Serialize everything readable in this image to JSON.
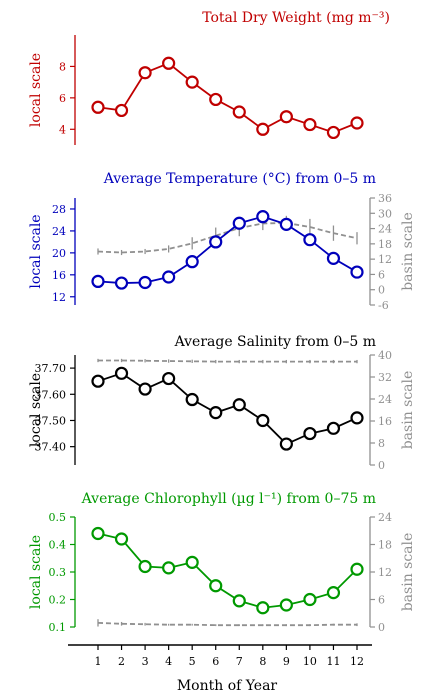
{
  "chart_data": [
    {
      "type": "line",
      "title": "Total Dry Weight (mg m⁻³)",
      "ylabel": "local scale",
      "color": "#c00000",
      "ylim": [
        3,
        10
      ],
      "yticks": [
        4,
        6,
        8
      ],
      "x": [
        1,
        2,
        3,
        4,
        5,
        6,
        7,
        8,
        9,
        10,
        11,
        12
      ],
      "series": [
        {
          "role": "local",
          "values": [
            5.4,
            5.2,
            7.6,
            8.2,
            7.0,
            5.9,
            5.1,
            4.0,
            4.8,
            4.3,
            3.8,
            4.4
          ]
        }
      ]
    },
    {
      "type": "line",
      "title": "Average Temperature (°C) from 0–5 m",
      "ylabel": "local scale",
      "ylabel_right": "basin scale",
      "color": "#0000bb",
      "ylim": [
        10.5,
        30
      ],
      "yticks": [
        12,
        16,
        20,
        24,
        28
      ],
      "ylim_right": [
        -6,
        36
      ],
      "yticks_right": [
        -6,
        0,
        6,
        12,
        18,
        24,
        30,
        36
      ],
      "x": [
        1,
        2,
        3,
        4,
        5,
        6,
        7,
        8,
        9,
        10,
        11,
        12
      ],
      "series": [
        {
          "role": "local",
          "values": [
            14.8,
            14.5,
            14.6,
            15.6,
            18.4,
            22.0,
            25.4,
            26.6,
            25.2,
            22.4,
            19.0,
            16.5
          ]
        },
        {
          "role": "basin",
          "values": [
            15.0,
            14.6,
            15.0,
            16.0,
            18.2,
            21.2,
            24.2,
            26.0,
            26.2,
            24.6,
            22.2,
            20.2
          ],
          "errors": [
            1.2,
            1.0,
            1.0,
            1.4,
            2.4,
            3.2,
            3.2,
            2.6,
            2.8,
            3.2,
            3.0,
            2.4
          ]
        }
      ]
    },
    {
      "type": "line",
      "title": "Average Salinity from 0–5 m",
      "ylabel": "local scale",
      "ylabel_right": "basin scale",
      "color": "#000000",
      "ylim": [
        37.33,
        37.75
      ],
      "yticks": [
        37.4,
        37.5,
        37.6,
        37.7
      ],
      "ytick_labels": [
        "37.40",
        "37.50",
        "37.60",
        "37.70"
      ],
      "ylim_right": [
        0,
        40
      ],
      "yticks_right": [
        0,
        8,
        16,
        24,
        32,
        40
      ],
      "x": [
        1,
        2,
        3,
        4,
        5,
        6,
        7,
        8,
        9,
        10,
        11,
        12
      ],
      "series": [
        {
          "role": "local",
          "values": [
            37.65,
            37.68,
            37.62,
            37.66,
            37.58,
            37.53,
            37.56,
            37.5,
            37.41,
            37.45,
            37.47,
            37.51
          ]
        },
        {
          "role": "basin",
          "values": [
            38.0,
            38.0,
            37.9,
            37.8,
            37.7,
            37.6,
            37.6,
            37.6,
            37.6,
            37.6,
            37.6,
            37.6
          ],
          "errors": [
            0.6,
            0.6,
            0.6,
            0.6,
            0.6,
            0.6,
            0.6,
            0.6,
            0.6,
            0.6,
            0.6,
            0.6
          ]
        }
      ]
    },
    {
      "type": "line",
      "title": "Average Chlorophyll (µg l⁻¹) from 0–75 m",
      "ylabel": "local scale",
      "ylabel_right": "basin scale",
      "color": "#009900",
      "ylim": [
        0.1,
        0.5
      ],
      "yticks": [
        0.1,
        0.2,
        0.3,
        0.4,
        0.5
      ],
      "ylim_right": [
        0,
        24
      ],
      "yticks_right": [
        0,
        6,
        12,
        18,
        24
      ],
      "x": [
        1,
        2,
        3,
        4,
        5,
        6,
        7,
        8,
        9,
        10,
        11,
        12
      ],
      "series": [
        {
          "role": "local",
          "values": [
            0.44,
            0.42,
            0.32,
            0.315,
            0.335,
            0.25,
            0.195,
            0.17,
            0.18,
            0.2,
            0.225,
            0.31
          ]
        },
        {
          "role": "basin",
          "values": [
            0.9,
            0.7,
            0.6,
            0.5,
            0.5,
            0.4,
            0.4,
            0.4,
            0.4,
            0.4,
            0.5,
            0.5
          ],
          "errors": [
            0.8,
            0.4,
            0.3,
            0.2,
            0.2,
            0.2,
            0.2,
            0.2,
            0.2,
            0.2,
            0.2,
            0.3
          ]
        }
      ]
    }
  ],
  "xaxis": {
    "label": "Month of Year",
    "ticks": [
      1,
      2,
      3,
      4,
      5,
      6,
      7,
      8,
      9,
      10,
      11,
      12
    ]
  }
}
